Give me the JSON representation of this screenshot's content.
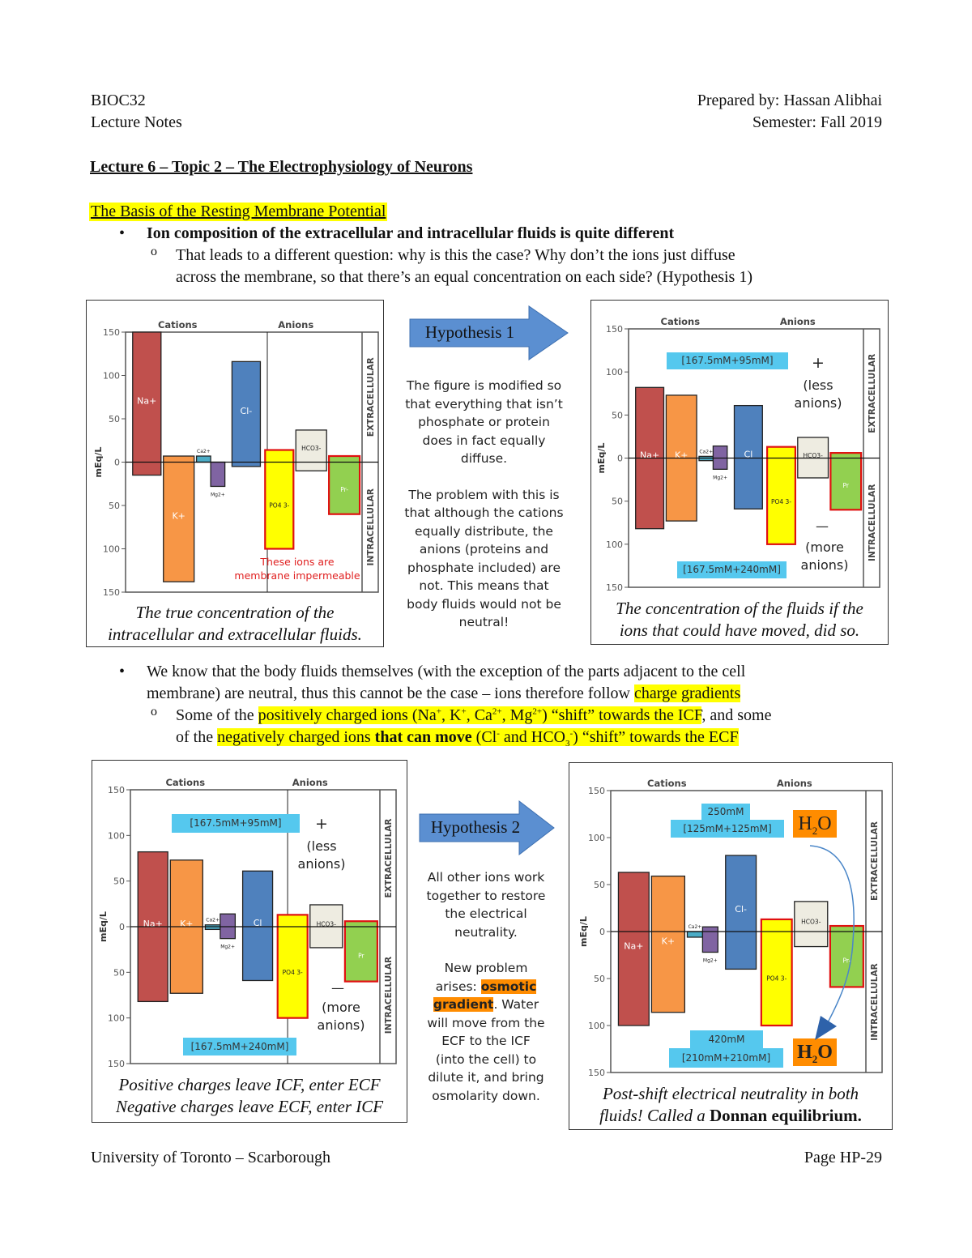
{
  "header": {
    "course": "BIOC32",
    "doc_type": "Lecture Notes",
    "prepared_by": "Prepared by: Hassan Alibhai",
    "semester": "Semester: Fall 2019"
  },
  "title": "Lecture 6 – Topic 2 – The Electrophysiology of Neurons",
  "section_heading": "The Basis of the Resting Membrane Potential",
  "bullet1": "Ion composition of the extracellular and intracellular fluids is quite different",
  "sub1_line1": "That leads to a different question: why is this the case? Why don’t the ions just diffuse",
  "sub1_line2": "across the membrane, so that there’s an equal concentration on each side? (Hypothesis 1)",
  "hyp1": {
    "label": "Hypothesis 1",
    "text1": [
      "The figure is modified so",
      "that everything that isn’t",
      "phosphate or protein",
      "does in fact equally",
      "diffuse."
    ],
    "text2": [
      "The problem with this is",
      "that although the cations",
      "equally distribute, the",
      "anions (proteins and",
      "phosphate included) are",
      "not. This means that",
      "body fluids would not be",
      "neutral!"
    ]
  },
  "bullet2": {
    "a": "We know that the body fluids themselves (with the exception of the parts adjacent to the cell",
    "b": "membrane) are neutral, thus this cannot be the case – ions therefore follow ",
    "c": "charge gradients"
  },
  "sub2": {
    "a": "Some of the ",
    "b": "positively charged ions (Na",
    "b2": "+",
    "b3": ", K",
    "b4": "+",
    "b5": ", Ca",
    "b6": "2+",
    "b7": ", Mg",
    "b8": "2+",
    "b9": ") “shift” towards the ICF",
    "c": ", and some",
    "d": "of the ",
    "e": "negatively charged ions ",
    "f": "that can move",
    "g": " (Cl",
    "g2": "-",
    "g3": " and HCO",
    "g4": "3",
    "g5": "-",
    "g6": ")  “shift” towards the ECF"
  },
  "hyp2": {
    "label": "Hypothesis 2",
    "text1": [
      "All other ions work",
      "together to restore",
      "the electrical",
      "neutrality."
    ],
    "text2a": "New problem",
    "text2b": "arises: ",
    "osmotic": "osmotic",
    "gradient": "gradient",
    "text2c": ". Water",
    "text2d": [
      "will move from the",
      "ECF to the ICF",
      "(into the cell) to",
      "dilute it, and bring",
      "osmolarity down."
    ]
  },
  "footer": {
    "left": "University of Toronto – Scarborough",
    "right": "Page HP-29"
  },
  "figures": [
    {
      "caption": [
        "The true concentration of the",
        "intracellular and extracellular fluids."
      ],
      "note": [
        "These ions are",
        "membrane impermeable"
      ]
    },
    {
      "caption": [
        "The concentration of the fluids if the",
        "ions that could have moved, did so."
      ],
      "top_box": "[167.5mM+95mM]",
      "bottom_box": "[167.5mM+240mM]",
      "plus": "+",
      "plus_note": [
        "(less",
        "anions)"
      ],
      "minus": "—",
      "minus_note": [
        "(more",
        "anions)"
      ]
    },
    {
      "caption": [
        "Positive charges leave ICF, enter ECF",
        "Negative charges leave ECF, enter ICF"
      ],
      "top_box": "[167.5mM+95mM]",
      "bottom_box": "[167.5mM+240mM]",
      "plus": "+",
      "plus_note": [
        "(less",
        "anions)"
      ],
      "minus": "—",
      "minus_note": [
        "(more",
        "anions)"
      ]
    },
    {
      "caption_a": "Post-shift electrical neutrality in both",
      "caption_b": "fluids! Called a ",
      "caption_bold": "Donnan equilibrium.",
      "top_box": [
        "250mM",
        "[125mM+125mM]"
      ],
      "bottom_box": [
        "420mM",
        "[210mM+210mM]"
      ],
      "h2o": "H2O"
    }
  ],
  "colors": {
    "Na": "#c0504d",
    "K": "#f79646",
    "Ca": "#4bacc6",
    "Mg": "#8064a2",
    "Cl": "#4f81bd",
    "PO4": "#ffff00",
    "HCO3": "#eeece1",
    "Pr": "#92d050",
    "impermeable_border": "#e01010",
    "arrow": "#4a86c8"
  },
  "chart_data": [
    {
      "type": "bar",
      "title": "",
      "ylabel": "mEq/L",
      "group_labels": [
        "Cations",
        "Anions"
      ],
      "side_labels": [
        "EXTRACELLULAR",
        "INTRACELLULAR"
      ],
      "yticks": [
        "150",
        "100",
        "50",
        "0",
        "50",
        "100",
        "150"
      ],
      "ylim": [
        -150,
        150
      ],
      "bars": [
        {
          "ion": "Na",
          "label": "Na+",
          "ecf": 150,
          "icf": 15
        },
        {
          "ion": "K",
          "label": "K+",
          "ecf": 7,
          "icf": 138
        },
        {
          "ion": "Ca",
          "label": "Ca2+",
          "ecf": 7,
          "icf": 0
        },
        {
          "ion": "Mg",
          "label": "Mg2+",
          "ecf": 0,
          "icf": 28
        },
        {
          "ion": "Cl",
          "label": "Cl-",
          "ecf": 116,
          "icf": 5
        },
        {
          "ion": "PO4",
          "label": "PO4 3-",
          "ecf": 14,
          "icf": 100,
          "impermeable": true
        },
        {
          "ion": "HCO3",
          "label": "HCO3-",
          "ecf": 37,
          "icf": 10
        },
        {
          "ion": "Pr",
          "label": "Pr-",
          "ecf": 7,
          "icf": 60,
          "impermeable": true
        }
      ]
    },
    {
      "type": "bar",
      "title": "",
      "ylabel": "mEq/L",
      "group_labels": [
        "Cations",
        "Anions"
      ],
      "side_labels": [
        "EXTRACELLULAR",
        "INTRACELLULAR"
      ],
      "yticks": [
        "150",
        "100",
        "50",
        "0",
        "50",
        "100",
        "150"
      ],
      "ylim": [
        -150,
        150
      ],
      "bars": [
        {
          "ion": "Na",
          "label": "Na+",
          "ecf": 82,
          "icf": 82
        },
        {
          "ion": "K",
          "label": "K+",
          "ecf": 73,
          "icf": 73
        },
        {
          "ion": "Ca",
          "label": "Ca2+",
          "ecf": 2,
          "icf": 3
        },
        {
          "ion": "Mg",
          "label": "Mg2+",
          "ecf": 14,
          "icf": 13
        },
        {
          "ion": "Cl",
          "label": "Cl",
          "ecf": 61,
          "icf": 59
        },
        {
          "ion": "PO4",
          "label": "PO4 3-",
          "ecf": 13,
          "icf": 100,
          "impermeable": true
        },
        {
          "ion": "HCO3",
          "label": "HCO3-",
          "ecf": 24,
          "icf": 23
        },
        {
          "ion": "Pr",
          "label": "Pr",
          "ecf": 6,
          "icf": 60,
          "impermeable": true
        }
      ]
    },
    {
      "type": "bar",
      "title": "",
      "ylabel": "mEq/L",
      "group_labels": [
        "Cations",
        "Anions"
      ],
      "side_labels": [
        "EXTRACELLULAR",
        "INTRACELLULAR"
      ],
      "yticks": [
        "150",
        "100",
        "50",
        "0",
        "50",
        "100",
        "150"
      ],
      "ylim": [
        -150,
        150
      ],
      "bars": [
        {
          "ion": "Na",
          "label": "Na+",
          "ecf": 82,
          "icf": 82
        },
        {
          "ion": "K",
          "label": "K+",
          "ecf": 73,
          "icf": 73
        },
        {
          "ion": "Ca",
          "label": "Ca2+",
          "ecf": 2,
          "icf": 3
        },
        {
          "ion": "Mg",
          "label": "Mg2+",
          "ecf": 14,
          "icf": 13
        },
        {
          "ion": "Cl",
          "label": "Cl",
          "ecf": 61,
          "icf": 59
        },
        {
          "ion": "PO4",
          "label": "PO4 3-",
          "ecf": 13,
          "icf": 100,
          "impermeable": true
        },
        {
          "ion": "HCO3",
          "label": "HCO3-",
          "ecf": 24,
          "icf": 23
        },
        {
          "ion": "Pr",
          "label": "Pr",
          "ecf": 6,
          "icf": 60,
          "impermeable": true
        }
      ]
    },
    {
      "type": "bar",
      "title": "",
      "ylabel": "mEq/L",
      "group_labels": [
        "Cations",
        "Anions"
      ],
      "side_labels": [
        "EXTRACELLULAR",
        "INTRACELLULAR"
      ],
      "yticks": [
        "150",
        "100",
        "50",
        "0",
        "50",
        "100",
        "150"
      ],
      "ylim": [
        -150,
        150
      ],
      "bars": [
        {
          "ion": "Na",
          "label": "Na+",
          "ecf": 63,
          "icf": 100
        },
        {
          "ion": "K",
          "label": "K+",
          "ecf": 59,
          "icf": 86
        },
        {
          "ion": "Ca",
          "label": "Ca2+",
          "ecf": 0,
          "icf": 6
        },
        {
          "ion": "Mg",
          "label": "Mg2+",
          "ecf": 5,
          "icf": 22
        },
        {
          "ion": "Cl",
          "label": "Cl-",
          "ecf": 81,
          "icf": 40
        },
        {
          "ion": "PO4",
          "label": "PO4 3-",
          "ecf": 13,
          "icf": 100,
          "impermeable": true
        },
        {
          "ion": "HCO3",
          "label": "HCO3-",
          "ecf": 32,
          "icf": 16
        },
        {
          "ion": "Pr",
          "label": "Pr-",
          "ecf": 6,
          "icf": 59,
          "impermeable": true
        }
      ]
    }
  ]
}
